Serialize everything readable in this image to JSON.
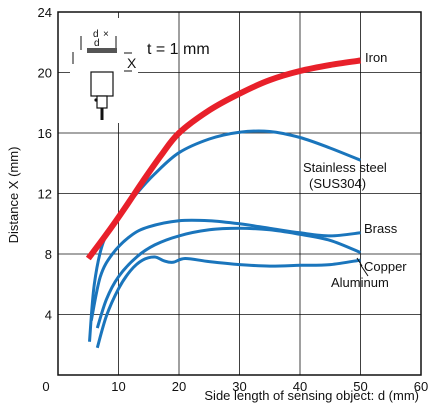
{
  "chart_data": {
    "type": "line",
    "xlabel": "Side length of sensing object: d (mm)",
    "ylabel": "Distance X (mm)",
    "xlim": [
      0,
      60
    ],
    "ylim": [
      0,
      24
    ],
    "x_ticks": [
      "0",
      "10",
      "20",
      "30",
      "40",
      "50",
      "60"
    ],
    "y_ticks": [
      "4",
      "8",
      "12",
      "16",
      "20",
      "24"
    ],
    "grid": true,
    "annotation": "t = 1 mm",
    "inset_labels": {
      "d_top": "d",
      "d_mid": "d",
      "x_mark": "X",
      "cross": "×"
    },
    "series": [
      {
        "name": "Iron",
        "color": "#e8202a",
        "width": 6,
        "x": [
          5,
          8,
          11,
          14,
          17,
          20,
          25,
          30,
          35,
          40,
          45,
          50
        ],
        "y": [
          7.7,
          9.3,
          11.0,
          12.8,
          14.5,
          16.0,
          17.5,
          18.6,
          19.5,
          20.1,
          20.5,
          20.8
        ]
      },
      {
        "name": "Stainless steel\n(SUS304)",
        "color": "#1a75bc",
        "width": 3,
        "x": [
          5.2,
          6,
          7.5,
          10,
          13,
          16,
          20,
          25,
          30,
          35,
          40,
          45,
          50
        ],
        "y": [
          2.2,
          6.0,
          8.8,
          10.5,
          12.0,
          13.3,
          14.7,
          15.6,
          16.05,
          16.1,
          15.7,
          15.0,
          14.2
        ]
      },
      {
        "name": "Brass",
        "color": "#1a75bc",
        "width": 3,
        "x": [
          5.5,
          7,
          9,
          12,
          15,
          20,
          25,
          30,
          35,
          40,
          45,
          50
        ],
        "y": [
          3.6,
          6.5,
          8.0,
          9.2,
          9.8,
          10.2,
          10.2,
          10.0,
          9.7,
          9.4,
          9.2,
          9.4
        ]
      },
      {
        "name": "Copper",
        "color": "#1a75bc",
        "width": 3,
        "x": [
          6.5,
          8,
          10,
          13,
          16,
          20,
          25,
          30,
          35,
          40,
          45,
          50
        ],
        "y": [
          3.1,
          5.0,
          6.5,
          7.8,
          8.6,
          9.2,
          9.6,
          9.7,
          9.6,
          9.3,
          8.9,
          8.1
        ]
      },
      {
        "name": "Aluminum",
        "color": "#1a75bc",
        "width": 3,
        "x": [
          6.5,
          8,
          10,
          12,
          14,
          16,
          17.5,
          19,
          21,
          25,
          30,
          35,
          40,
          45,
          50
        ],
        "y": [
          1.8,
          3.9,
          5.7,
          6.9,
          7.6,
          7.8,
          7.55,
          7.45,
          7.7,
          7.5,
          7.3,
          7.2,
          7.25,
          7.3,
          7.6
        ]
      }
    ],
    "series_labels": [
      {
        "text": "Iron"
      },
      {
        "text": "Stainless steel"
      },
      {
        "text": "(SUS304)"
      },
      {
        "text": "Brass"
      },
      {
        "text": "Copper"
      },
      {
        "text": "Aluminum"
      }
    ]
  }
}
